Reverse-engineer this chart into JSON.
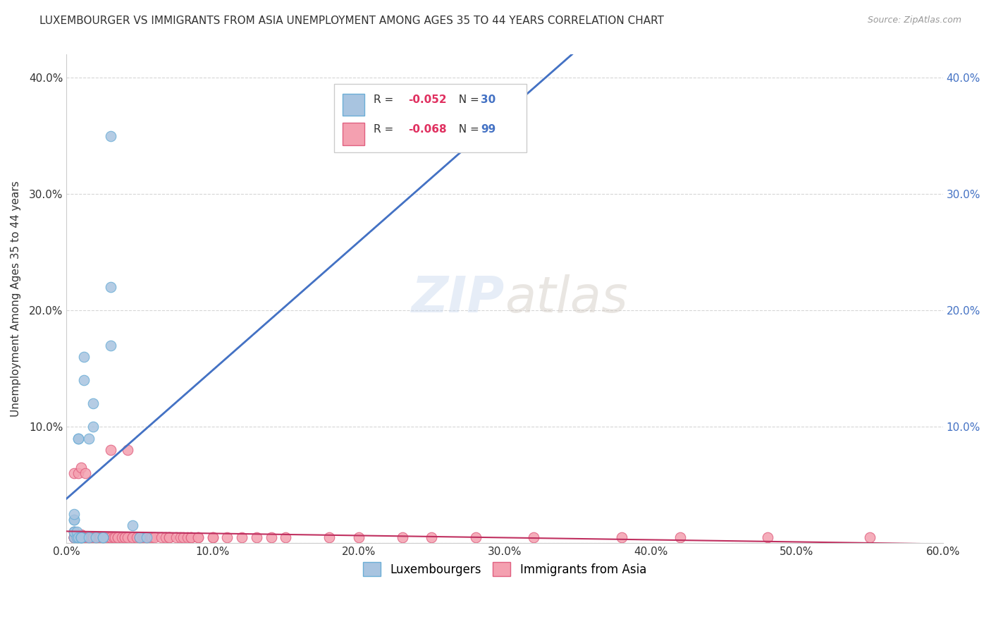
{
  "title": "LUXEMBOURGER VS IMMIGRANTS FROM ASIA UNEMPLOYMENT AMONG AGES 35 TO 44 YEARS CORRELATION CHART",
  "source": "Source: ZipAtlas.com",
  "ylabel": "Unemployment Among Ages 35 to 44 years",
  "xlim": [
    0,
    0.6
  ],
  "ylim": [
    0,
    0.42
  ],
  "xticks": [
    0.0,
    0.1,
    0.2,
    0.3,
    0.4,
    0.5,
    0.6
  ],
  "yticks": [
    0.0,
    0.1,
    0.2,
    0.3,
    0.4
  ],
  "xtick_labels": [
    "0.0%",
    "10.0%",
    "20.0%",
    "30.0%",
    "40.0%",
    "50.0%",
    "60.0%"
  ],
  "ytick_labels": [
    "",
    "10.0%",
    "20.0%",
    "30.0%",
    "40.0%"
  ],
  "right_yticks": [
    0.1,
    0.2,
    0.3,
    0.4
  ],
  "right_ytick_labels": [
    "10.0%",
    "20.0%",
    "30.0%",
    "40.0%"
  ],
  "lux_color": "#a8c4e0",
  "lux_edge_color": "#6baed6",
  "asia_color": "#f4a0b0",
  "asia_edge_color": "#e06080",
  "lux_trend_color": "#4472c4",
  "asia_trend_color": "#c0304060",
  "watermark": "ZIPatlas",
  "legend_R_color": "#e03060",
  "legend_N_color": "#4472c4",
  "lux_scatter_x": [
    0.005,
    0.005,
    0.005,
    0.005,
    0.005,
    0.005,
    0.007,
    0.007,
    0.008,
    0.008,
    0.008,
    0.01,
    0.01,
    0.01,
    0.01,
    0.012,
    0.012,
    0.015,
    0.015,
    0.018,
    0.018,
    0.02,
    0.025,
    0.025,
    0.03,
    0.03,
    0.03,
    0.045,
    0.05,
    0.055
  ],
  "lux_scatter_y": [
    0.005,
    0.01,
    0.01,
    0.02,
    0.02,
    0.025,
    0.005,
    0.01,
    0.005,
    0.09,
    0.09,
    0.005,
    0.005,
    0.005,
    0.005,
    0.14,
    0.16,
    0.005,
    0.09,
    0.1,
    0.12,
    0.005,
    0.005,
    0.005,
    0.17,
    0.22,
    0.35,
    0.015,
    0.005,
    0.005
  ],
  "asia_scatter_x": [
    0.005,
    0.005,
    0.005,
    0.005,
    0.005,
    0.005,
    0.005,
    0.005,
    0.007,
    0.007,
    0.007,
    0.008,
    0.008,
    0.008,
    0.008,
    0.008,
    0.01,
    0.01,
    0.01,
    0.01,
    0.01,
    0.01,
    0.01,
    0.012,
    0.012,
    0.012,
    0.013,
    0.013,
    0.014,
    0.015,
    0.015,
    0.016,
    0.017,
    0.018,
    0.018,
    0.018,
    0.02,
    0.02,
    0.02,
    0.02,
    0.022,
    0.023,
    0.025,
    0.025,
    0.025,
    0.028,
    0.028,
    0.03,
    0.03,
    0.03,
    0.032,
    0.033,
    0.035,
    0.035,
    0.038,
    0.04,
    0.04,
    0.042,
    0.042,
    0.045,
    0.045,
    0.048,
    0.05,
    0.05,
    0.052,
    0.053,
    0.055,
    0.055,
    0.057,
    0.058,
    0.06,
    0.065,
    0.068,
    0.07,
    0.07,
    0.075,
    0.078,
    0.08,
    0.083,
    0.085,
    0.085,
    0.09,
    0.09,
    0.1,
    0.1,
    0.11,
    0.12,
    0.13,
    0.14,
    0.15,
    0.18,
    0.2,
    0.23,
    0.25,
    0.28,
    0.32,
    0.38,
    0.42,
    0.48,
    0.55
  ],
  "asia_scatter_y": [
    0.005,
    0.005,
    0.005,
    0.005,
    0.005,
    0.005,
    0.01,
    0.06,
    0.005,
    0.005,
    0.005,
    0.005,
    0.005,
    0.005,
    0.005,
    0.06,
    0.005,
    0.005,
    0.005,
    0.005,
    0.005,
    0.007,
    0.065,
    0.005,
    0.005,
    0.005,
    0.005,
    0.06,
    0.005,
    0.005,
    0.005,
    0.005,
    0.005,
    0.005,
    0.005,
    0.005,
    0.005,
    0.005,
    0.005,
    0.005,
    0.005,
    0.005,
    0.005,
    0.005,
    0.005,
    0.005,
    0.005,
    0.005,
    0.005,
    0.08,
    0.005,
    0.005,
    0.005,
    0.005,
    0.005,
    0.005,
    0.005,
    0.005,
    0.08,
    0.005,
    0.005,
    0.005,
    0.005,
    0.005,
    0.005,
    0.005,
    0.005,
    0.005,
    0.005,
    0.005,
    0.005,
    0.005,
    0.005,
    0.005,
    0.005,
    0.005,
    0.005,
    0.005,
    0.005,
    0.005,
    0.005,
    0.005,
    0.005,
    0.005,
    0.005,
    0.005,
    0.005,
    0.005,
    0.005,
    0.005,
    0.005,
    0.005,
    0.005,
    0.005,
    0.005,
    0.005,
    0.005,
    0.005,
    0.005,
    0.005
  ]
}
